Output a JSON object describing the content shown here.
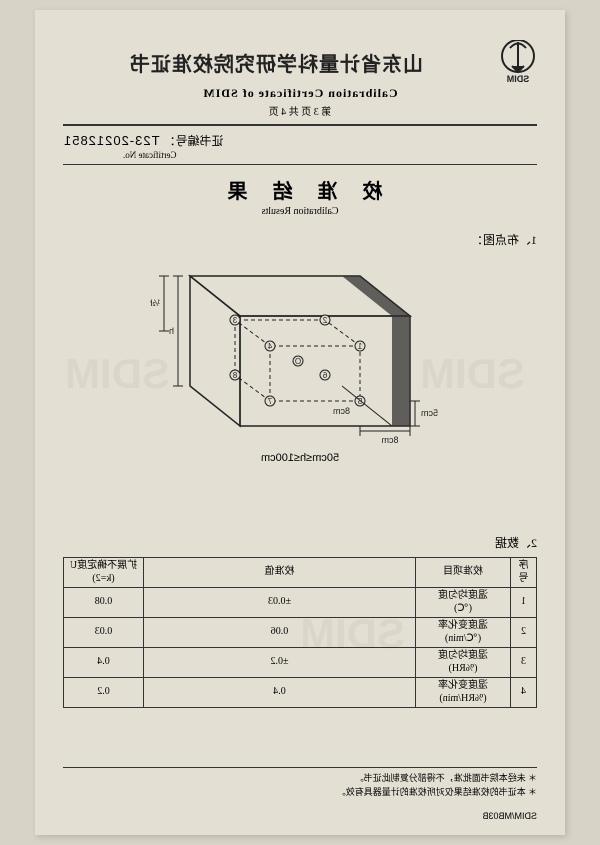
{
  "header": {
    "logo_text": "SDIM",
    "title_cn": "山东省计量科学研究院校准证书",
    "title_en": "Calibration Certificate of SDIM",
    "page_text": "第 3 页 共 4 页"
  },
  "certificate": {
    "label_cn": "证书编号：",
    "label_en": "Certificate No.",
    "value": "T23-20212851"
  },
  "results": {
    "title_cn": "校 准 结 果",
    "title_en": "Calibration Results"
  },
  "section1": {
    "label": "1、布点图：",
    "caption": "50cm≤h≤100cm",
    "dim_8cm": "8cm",
    "dim_5cm": "5cm",
    "dim_h": "h",
    "dim_halfh": "½h"
  },
  "section2": {
    "label": "2、数据"
  },
  "table": {
    "columns": {
      "idx": "序号",
      "item": "校准项目",
      "value": "校准值",
      "uncert": "扩展不确定度U (k=2)"
    },
    "rows": [
      {
        "idx": "1",
        "item": "温度均匀度\n(℃)",
        "value": "±0.03",
        "uncert": "0.08"
      },
      {
        "idx": "2",
        "item": "温度变化率\n(℃/min)",
        "value": "0.06",
        "uncert": "0.03"
      },
      {
        "idx": "3",
        "item": "湿度均匀度\n(%RH)",
        "value": "±0.2",
        "uncert": "0.4"
      },
      {
        "idx": "4",
        "item": "湿度变化率\n(%RH/min)",
        "value": "0.4",
        "uncert": "0.2"
      }
    ]
  },
  "footnotes": {
    "n1": "＊ 未经本院书面批准，不得部分复制此证书。",
    "n2": "＊ 本证书的校准结果仅对所校准的计量器具有效。"
  },
  "footer_code": "SDIM/MB03B",
  "colors": {
    "paper": "#e4dfd3",
    "bg": "#d8d3c7",
    "line": "#333333",
    "text": "#222222"
  }
}
